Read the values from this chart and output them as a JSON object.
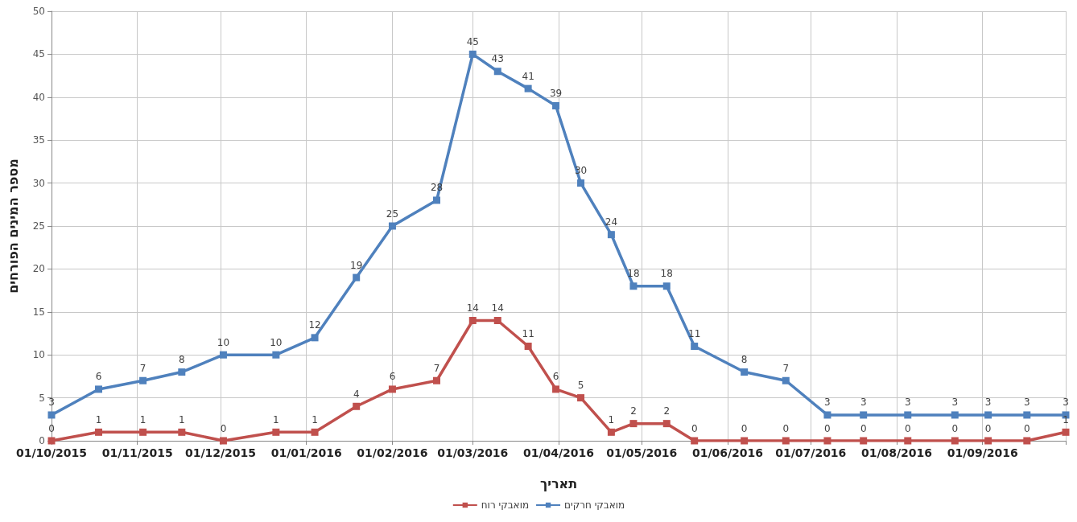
{
  "chart_data": {
    "type": "line",
    "xlabel": "תאריך",
    "ylabel": "מספר המינים הפורחים",
    "x": [
      "2015-10-01",
      "2015-10-18",
      "2015-11-03",
      "2015-11-17",
      "2015-12-02",
      "2015-12-21",
      "2016-01-04",
      "2016-01-19",
      "2016-02-01",
      "2016-02-17",
      "2016-03-01",
      "2016-03-10",
      "2016-03-21",
      "2016-03-31",
      "2016-04-09",
      "2016-04-20",
      "2016-04-28",
      "2016-05-10",
      "2016-05-20",
      "2016-06-07",
      "2016-06-22",
      "2016-07-07",
      "2016-07-20",
      "2016-08-05",
      "2016-08-22",
      "2016-09-03",
      "2016-09-17",
      "2016-10-01"
    ],
    "series": [
      {
        "name": "מואבקי רוח",
        "color": "#c0504d",
        "values": [
          0,
          1,
          1,
          1,
          0,
          1,
          1,
          4,
          6,
          7,
          14,
          14,
          11,
          6,
          5,
          1,
          2,
          2,
          0,
          0,
          0,
          0,
          0,
          0,
          0,
          0,
          0,
          1
        ]
      },
      {
        "name": "מואבקי חרקים",
        "color": "#4f81bd",
        "values": [
          3,
          6,
          7,
          8,
          10,
          10,
          12,
          19,
          25,
          28,
          45,
          43,
          41,
          39,
          30,
          24,
          18,
          18,
          11,
          8,
          7,
          3,
          3,
          3,
          3,
          3,
          3,
          3
        ]
      }
    ],
    "xlim": [
      "2015-10-01",
      "2016-10-01"
    ],
    "xticks": [
      {
        "value": "2015-10-01",
        "label": "01/10/2015"
      },
      {
        "value": "2015-11-01",
        "label": "01/11/2015"
      },
      {
        "value": "2015-12-01",
        "label": "01/12/2015"
      },
      {
        "value": "2016-01-01",
        "label": "01/01/2016"
      },
      {
        "value": "2016-02-01",
        "label": "01/02/2016"
      },
      {
        "value": "2016-03-01",
        "label": "01/03/2016"
      },
      {
        "value": "2016-04-01",
        "label": "01/04/2016"
      },
      {
        "value": "2016-05-01",
        "label": "01/05/2016"
      },
      {
        "value": "2016-06-01",
        "label": "01/06/2016"
      },
      {
        "value": "2016-07-01",
        "label": "01/07/2016"
      },
      {
        "value": "2016-08-01",
        "label": "01/08/2016"
      },
      {
        "value": "2016-09-01",
        "label": "01/09/2016"
      },
      {
        "value": "2016-10-01",
        "label": null
      }
    ],
    "ylim": [
      0,
      50
    ],
    "yticks": [
      0,
      5,
      10,
      15,
      20,
      25,
      30,
      35,
      40,
      45,
      50
    ],
    "grid": true,
    "legend": "bottom",
    "marker": "square",
    "line_style": "solid",
    "data_labels": true
  }
}
